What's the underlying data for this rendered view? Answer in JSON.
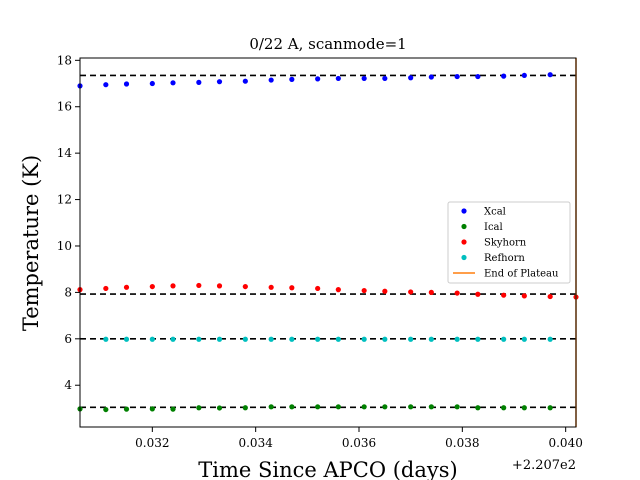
{
  "chart_data": {
    "type": "scatter",
    "title": "0/22 A, scanmode=1",
    "xlabel": "Time Since APCO (days)",
    "ylabel": "Temperature (K)",
    "x_offset_label": "+2.207e2",
    "xlim": [
      0.0306,
      0.0402
    ],
    "ylim": [
      2.2,
      18.1
    ],
    "x_ticks": [
      0.032,
      0.034,
      0.036,
      0.038,
      0.04
    ],
    "x_tick_labels": [
      "0.032",
      "0.034",
      "0.036",
      "0.038",
      "0.040"
    ],
    "y_ticks": [
      4,
      6,
      8,
      10,
      12,
      14,
      16,
      18
    ],
    "y_tick_labels": [
      "4",
      "6",
      "8",
      "10",
      "12",
      "14",
      "16",
      "18"
    ],
    "grid": false,
    "legend_position": "center-right",
    "x": [
      0.0306,
      0.0311,
      0.0315,
      0.032,
      0.0324,
      0.0329,
      0.0333,
      0.0338,
      0.0343,
      0.0347,
      0.0352,
      0.0356,
      0.0361,
      0.0365,
      0.037,
      0.0374,
      0.0379,
      0.0383,
      0.0388,
      0.0392,
      0.0397,
      0.0402
    ],
    "series": [
      {
        "name": "Xcal",
        "color": "#0000ff",
        "marker": "dot",
        "values": [
          16.9,
          16.95,
          16.98,
          17.0,
          17.03,
          17.05,
          17.08,
          17.1,
          17.15,
          17.18,
          17.2,
          17.22,
          17.22,
          17.22,
          17.25,
          17.28,
          17.3,
          17.3,
          17.32,
          17.35,
          17.38,
          null
        ]
      },
      {
        "name": "Ical",
        "color": "#008000",
        "marker": "dot",
        "values": [
          2.98,
          2.95,
          2.97,
          2.98,
          2.97,
          3.03,
          3.02,
          3.03,
          3.07,
          3.07,
          3.07,
          3.07,
          3.07,
          3.07,
          3.07,
          3.07,
          3.07,
          3.03,
          3.03,
          3.03,
          3.03,
          null
        ]
      },
      {
        "name": "Skyhorn",
        "color": "#ff0000",
        "marker": "dot",
        "values": [
          8.12,
          8.17,
          8.22,
          8.25,
          8.28,
          8.3,
          8.28,
          8.25,
          8.22,
          8.2,
          8.17,
          8.12,
          8.08,
          8.05,
          8.02,
          8.0,
          7.97,
          7.92,
          7.88,
          7.85,
          7.82,
          7.8
        ]
      },
      {
        "name": "Refhorn",
        "color": "#00bfbf",
        "marker": "dot",
        "values": [
          null,
          5.98,
          5.98,
          5.98,
          5.98,
          5.98,
          5.98,
          5.98,
          5.98,
          5.98,
          5.98,
          5.98,
          5.98,
          5.98,
          5.98,
          5.98,
          5.98,
          5.98,
          5.98,
          5.98,
          5.98,
          null
        ]
      },
      {
        "name": "End of Plateau",
        "color": "#ff7f0e",
        "marker": "vline",
        "x": 0.0402
      }
    ],
    "reference_lines": [
      17.35,
      7.93,
      6.0,
      3.05
    ],
    "reference_line_color": "#000000",
    "reference_line_style": "dashed"
  }
}
